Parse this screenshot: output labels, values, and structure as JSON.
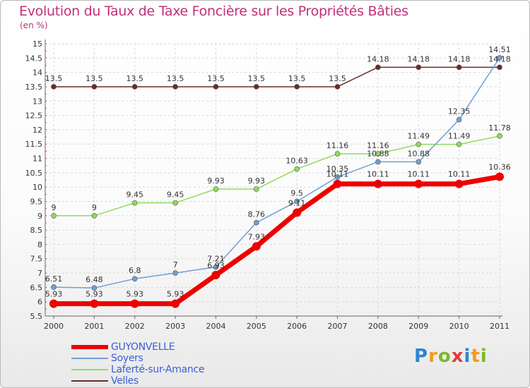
{
  "title": "Evolution du Taux de Taxe Foncière sur les Propriétés Bâties",
  "subtitle": "(en %)",
  "logo": "Proxiti",
  "chart_data": {
    "type": "line",
    "title": "Evolution du Taux de Taxe Foncière sur les Propriétés Bâties",
    "ylabel": "(en %)",
    "xlabel": "",
    "x": [
      "2000",
      "2001",
      "2002",
      "2003",
      "2004",
      "2005",
      "2006",
      "2007",
      "2008",
      "2009",
      "2010",
      "2011"
    ],
    "ylim": [
      5.5,
      15
    ],
    "yticks": [
      "5.5",
      "6",
      "6.5",
      "7",
      "7.5",
      "8",
      "8.5",
      "9",
      "9.5",
      "10",
      "10.5",
      "11",
      "11.5",
      "12",
      "12.5",
      "13",
      "13.5",
      "14",
      "14.5",
      "15"
    ],
    "series": [
      {
        "name": "Velles",
        "color": "#6b2a2a",
        "values": [
          13.5,
          13.5,
          13.5,
          13.5,
          13.5,
          13.5,
          13.5,
          13.5,
          14.18,
          14.18,
          14.18,
          14.18
        ],
        "labels": [
          "13.5",
          "13.5",
          "13.5",
          "13.5",
          "13.5",
          "13.5",
          "13.5",
          "13.5",
          "14.18",
          "14.18",
          "14.18",
          "14.18"
        ]
      },
      {
        "name": "Laferté-sur-Amance",
        "color": "#8fdc5a",
        "values": [
          9,
          9,
          9.45,
          9.45,
          9.93,
          9.93,
          10.63,
          11.16,
          11.16,
          11.49,
          11.49,
          11.78
        ],
        "labels": [
          "9",
          "9",
          "9.45",
          "9.45",
          "9.93",
          "9.93",
          "10.63",
          "11.16",
          "11.16",
          "11.49",
          "11.49",
          "11.78"
        ]
      },
      {
        "name": "Soyers",
        "color": "#6f9fd4",
        "values": [
          6.51,
          6.48,
          6.8,
          7,
          7.21,
          8.76,
          9.5,
          10.35,
          10.88,
          10.88,
          12.35,
          14.51
        ],
        "labels": [
          "6.51",
          "6.48",
          "6.8",
          "7",
          "7.21",
          "8.76",
          "9.5",
          "10.35",
          "10.88",
          "10.88",
          "12.35",
          "14.51"
        ]
      },
      {
        "name": "GUYONVELLE",
        "color": "#ee0000",
        "values": [
          5.93,
          5.93,
          5.93,
          5.93,
          6.93,
          7.93,
          9.11,
          10.11,
          10.11,
          10.11,
          10.11,
          10.36
        ],
        "labels": [
          "5.93",
          "5.93",
          "5.93",
          "5.93",
          "6.93",
          "7.93",
          "9.11",
          "10.11",
          "10.11",
          "10.11",
          "10.11",
          "10.36"
        ]
      }
    ],
    "legend": [
      "GUYONVELLE",
      "Soyers",
      "Laferté-sur-Amance",
      "Velles"
    ],
    "legend_position": "bottom-left"
  }
}
